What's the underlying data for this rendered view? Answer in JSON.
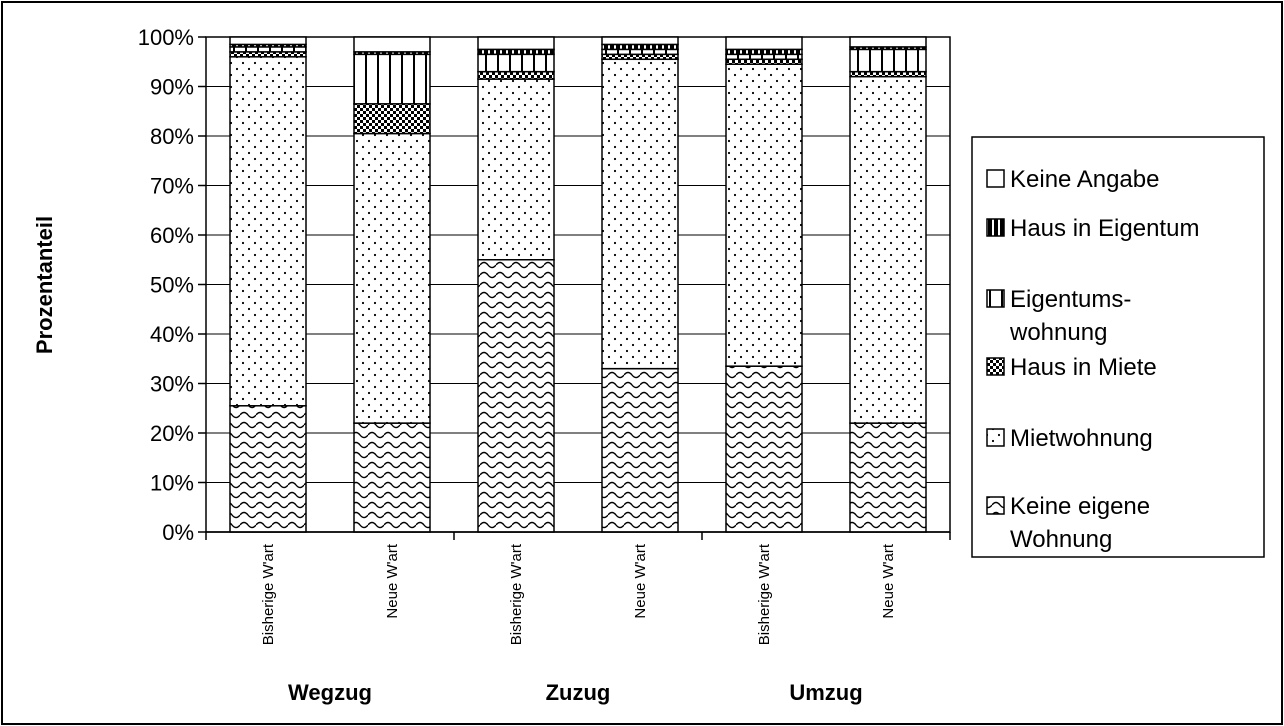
{
  "chart_data": {
    "type": "bar",
    "stacked": true,
    "percent": true,
    "ylabel": "Prozentanteil",
    "ylim": [
      0,
      100
    ],
    "yticks": [
      "0%",
      "10%",
      "20%",
      "30%",
      "40%",
      "50%",
      "60%",
      "70%",
      "80%",
      "90%",
      "100%"
    ],
    "grid": true,
    "legend_position": "right",
    "groups": [
      "Wegzug",
      "Zuzug",
      "Umzug"
    ],
    "categories": [
      "Bisherige W'art",
      "Neue W'art",
      "Bisherige W'art",
      "Neue W'art",
      "Bisherige W'art",
      "Neue W'art"
    ],
    "series": [
      {
        "name": "Keine eigene Wohnung",
        "legend_lines": [
          "Keine eigene",
          "Wohnung"
        ],
        "pattern": "wave",
        "values": [
          25.5,
          22,
          55,
          33,
          33.5,
          22
        ]
      },
      {
        "name": "Mietwohnung",
        "legend_lines": [
          "Mietwohnung"
        ],
        "pattern": "dots",
        "values": [
          70.5,
          58.5,
          36.5,
          62.5,
          61,
          70
        ]
      },
      {
        "name": "Haus in Miete",
        "legend_lines": [
          "Haus in Miete"
        ],
        "pattern": "check",
        "values": [
          1,
          6,
          1.5,
          1,
          1,
          1
        ]
      },
      {
        "name": "Eigentums- wohnung",
        "legend_lines": [
          "Eigentums-",
          "wohnung"
        ],
        "pattern": "vlines",
        "values": [
          1,
          10,
          3.5,
          1,
          1,
          4.5
        ]
      },
      {
        "name": "Haus in Eigentum",
        "legend_lines": [
          "Haus in Eigentum"
        ],
        "pattern": "dense",
        "values": [
          0.5,
          0.5,
          1,
          1,
          1,
          0.5
        ]
      },
      {
        "name": "Keine Angabe",
        "legend_lines": [
          "Keine Angabe"
        ],
        "pattern": "white",
        "values": [
          1.5,
          3,
          2.5,
          1.5,
          2.5,
          2
        ]
      }
    ]
  }
}
